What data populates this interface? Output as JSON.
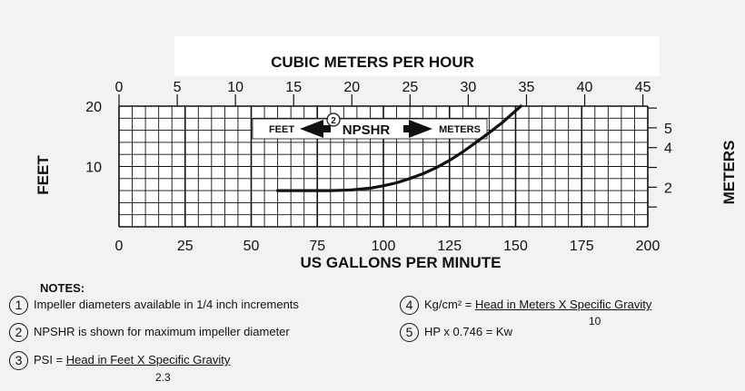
{
  "chart_data": {
    "type": "line",
    "title": "CUBIC METERS PER HOUR",
    "xlabel": "US GALLONS PER MINUTE",
    "ylabel_left": "FEET",
    "ylabel_right": "METERS",
    "xlim": [
      0,
      200
    ],
    "ylim": [
      0,
      20
    ],
    "x_ticks": [
      "0",
      "25",
      "50",
      "75",
      "100",
      "125",
      "150",
      "175",
      "200"
    ],
    "top_ticks": [
      "0",
      "5",
      "10",
      "15",
      "20",
      "25",
      "30",
      "35",
      "40",
      "45"
    ],
    "top_tick_values": [
      0,
      5,
      10,
      15,
      20,
      25,
      30,
      35,
      40,
      45
    ],
    "left_ticks": [
      "20",
      "10"
    ],
    "left_tick_values": [
      20,
      10
    ],
    "right_ticks": [
      "5",
      "4",
      "2"
    ],
    "right_tick_values": [
      5,
      4,
      2
    ],
    "annotation": {
      "left_text": "FEET",
      "center_text": "NPSHR",
      "right_text": "METERS",
      "note_marker": "2"
    },
    "series": [
      {
        "x": [
          60,
          70,
          80,
          88,
          95,
          100,
          105,
          110,
          115,
          120,
          125,
          130,
          135,
          140,
          145,
          152
        ],
        "y": [
          6.0,
          6.0,
          6.0,
          6.1,
          6.4,
          6.8,
          7.3,
          8.0,
          8.8,
          9.8,
          11.0,
          12.4,
          14.0,
          15.6,
          17.3,
          20.0
        ]
      }
    ],
    "grid": true
  },
  "notes": {
    "heading": "NOTES:",
    "items": [
      {
        "marker": "1",
        "text": "Impeller diameters available in 1/4 inch increments"
      },
      {
        "marker": "2",
        "text": "NPSHR is shown for maximum impeller diameter"
      },
      {
        "marker": "3",
        "prefix": "PSI = ",
        "numerator": "Head in Feet X Specific Gravity",
        "denominator": "2.3"
      },
      {
        "marker": "4",
        "prefix": "Kg/cm² = ",
        "numerator": "Head in Meters X Specific Gravity",
        "denominator": "10"
      },
      {
        "marker": "5",
        "text": "HP x 0.746 = Kw"
      }
    ]
  }
}
